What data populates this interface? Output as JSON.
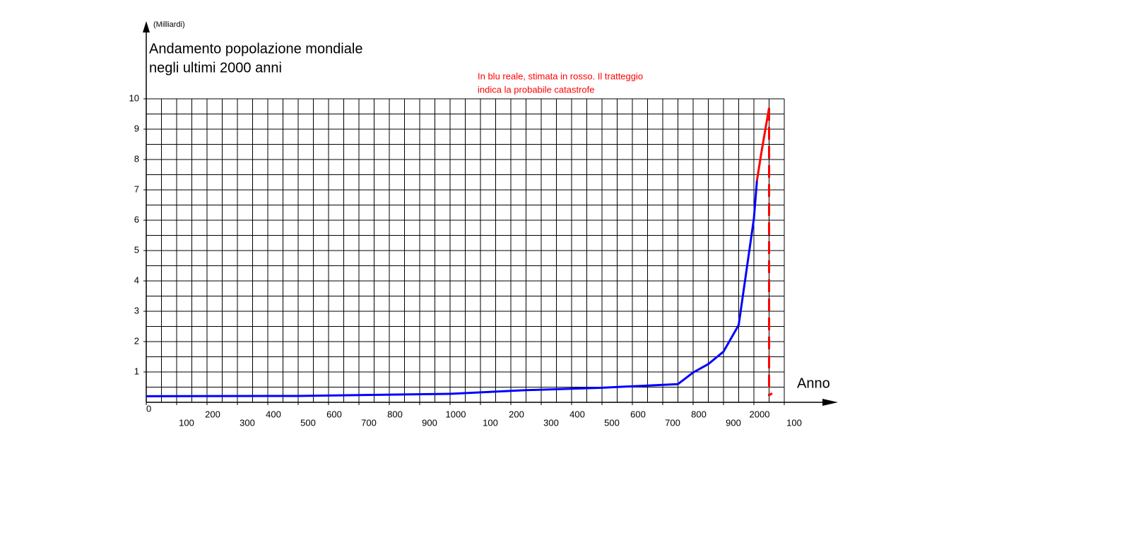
{
  "chart_data": {
    "type": "line",
    "unit_label": "(Milliardi)",
    "title": [
      "Andamento popolazione mondiale",
      "negli ultimi 2000 anni"
    ],
    "annotation": [
      "In blu reale, stimata in rosso. Il tratteggio",
      "indica la probabile catastrofe"
    ],
    "xlabel": "Anno",
    "xlim": [
      0,
      2100
    ],
    "ylim": [
      0,
      10
    ],
    "xticks": [
      0,
      100,
      200,
      300,
      400,
      500,
      600,
      700,
      800,
      900,
      1000,
      {
        "value": 1100,
        "label": "100"
      },
      {
        "value": 1200,
        "label": "200"
      },
      {
        "value": 1300,
        "label": "300"
      },
      {
        "value": 1400,
        "label": "400"
      },
      {
        "value": 1500,
        "label": "500"
      },
      {
        "value": 1600,
        "label": "600"
      },
      {
        "value": 1700,
        "label": "700"
      },
      {
        "value": 1800,
        "label": "800"
      },
      {
        "value": 1900,
        "label": "900"
      },
      2000,
      {
        "value": 2100,
        "label": "100"
      }
    ],
    "yticks": [
      1,
      2,
      3,
      4,
      5,
      6,
      7,
      8,
      9,
      10
    ],
    "grid": {
      "x_step": 50,
      "y_step": 0.5
    },
    "series": [
      {
        "color": "#0000ff",
        "dashed": false,
        "x": [
          0,
          500,
          1000,
          1250,
          1500,
          1750,
          1800,
          1850,
          1900,
          1950,
          2000,
          2010
        ],
        "values": [
          0.2,
          0.21,
          0.28,
          0.4,
          0.48,
          0.6,
          0.98,
          1.26,
          1.67,
          2.55,
          6.05,
          7.3
        ]
      },
      {
        "color": "#ff0000",
        "dashed": false,
        "x": [
          2010,
          2025,
          2050
        ],
        "values": [
          7.3,
          8.25,
          9.7
        ]
      },
      {
        "color": "#ff0000",
        "dashed": true,
        "x": [
          2050,
          2050,
          2060
        ],
        "values": [
          9.7,
          0.23,
          0.3
        ]
      }
    ]
  }
}
